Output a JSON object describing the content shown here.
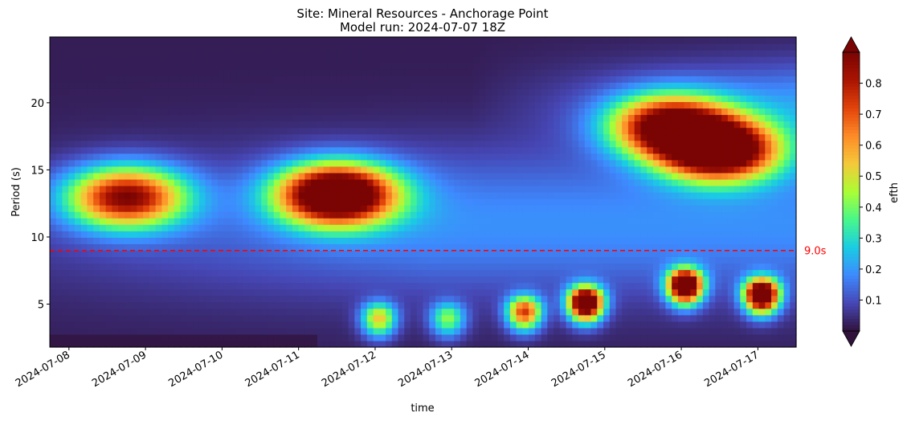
{
  "chart_data": {
    "type": "heatmap",
    "title": "Site: Mineral Resources - Anchorage Point",
    "subtitle": "Model run: 2024-07-07 18Z",
    "xlabel": "time",
    "ylabel": "Period (s)",
    "x_range": [
      "2024-07-07T18:00",
      "2024-07-17T12:00"
    ],
    "x_ticks": [
      "2024-07-08",
      "2024-07-09",
      "2024-07-10",
      "2024-07-11",
      "2024-07-12",
      "2024-07-13",
      "2024-07-14",
      "2024-07-15",
      "2024-07-16",
      "2024-07-17"
    ],
    "ylim": [
      1.8,
      24.9
    ],
    "y_ticks": [
      5,
      10,
      15,
      20
    ],
    "colorbar": {
      "label": "efth",
      "vmin": 0,
      "vmax": 0.9,
      "extend": "both",
      "ticks": [
        0.1,
        0.2,
        0.3,
        0.4,
        0.5,
        0.6,
        0.7,
        0.8
      ],
      "colormap": "turbo"
    },
    "reference_line": {
      "y": 9.0,
      "label": "9.0s",
      "color": "#ff0000",
      "style": "dashed"
    },
    "features": [
      {
        "description": "swell band",
        "t_day": 1.0,
        "period": 13.0,
        "peak": 0.65
      },
      {
        "description": "swell band",
        "t_day": 3.75,
        "period": 13.2,
        "peak": 0.9
      },
      {
        "description": "swell band",
        "t_day": 8.75,
        "period": 16.5,
        "peak": 0.85
      },
      {
        "description": "swell band",
        "t_day": 8.1,
        "period": 18.3,
        "peak": 0.7
      },
      {
        "description": "wind sea",
        "t_day": 4.3,
        "period": 4.0,
        "peak": 0.4
      },
      {
        "description": "wind sea",
        "t_day": 5.2,
        "period": 4.0,
        "peak": 0.3
      },
      {
        "description": "wind sea",
        "t_day": 6.2,
        "period": 4.5,
        "peak": 0.55
      },
      {
        "description": "wind sea",
        "t_day": 7.0,
        "period": 5.2,
        "peak": 0.9
      },
      {
        "description": "wind sea",
        "t_day": 8.3,
        "period": 6.5,
        "peak": 0.9
      },
      {
        "description": "wind sea",
        "t_day": 9.3,
        "period": 5.8,
        "peak": 0.9
      }
    ]
  }
}
